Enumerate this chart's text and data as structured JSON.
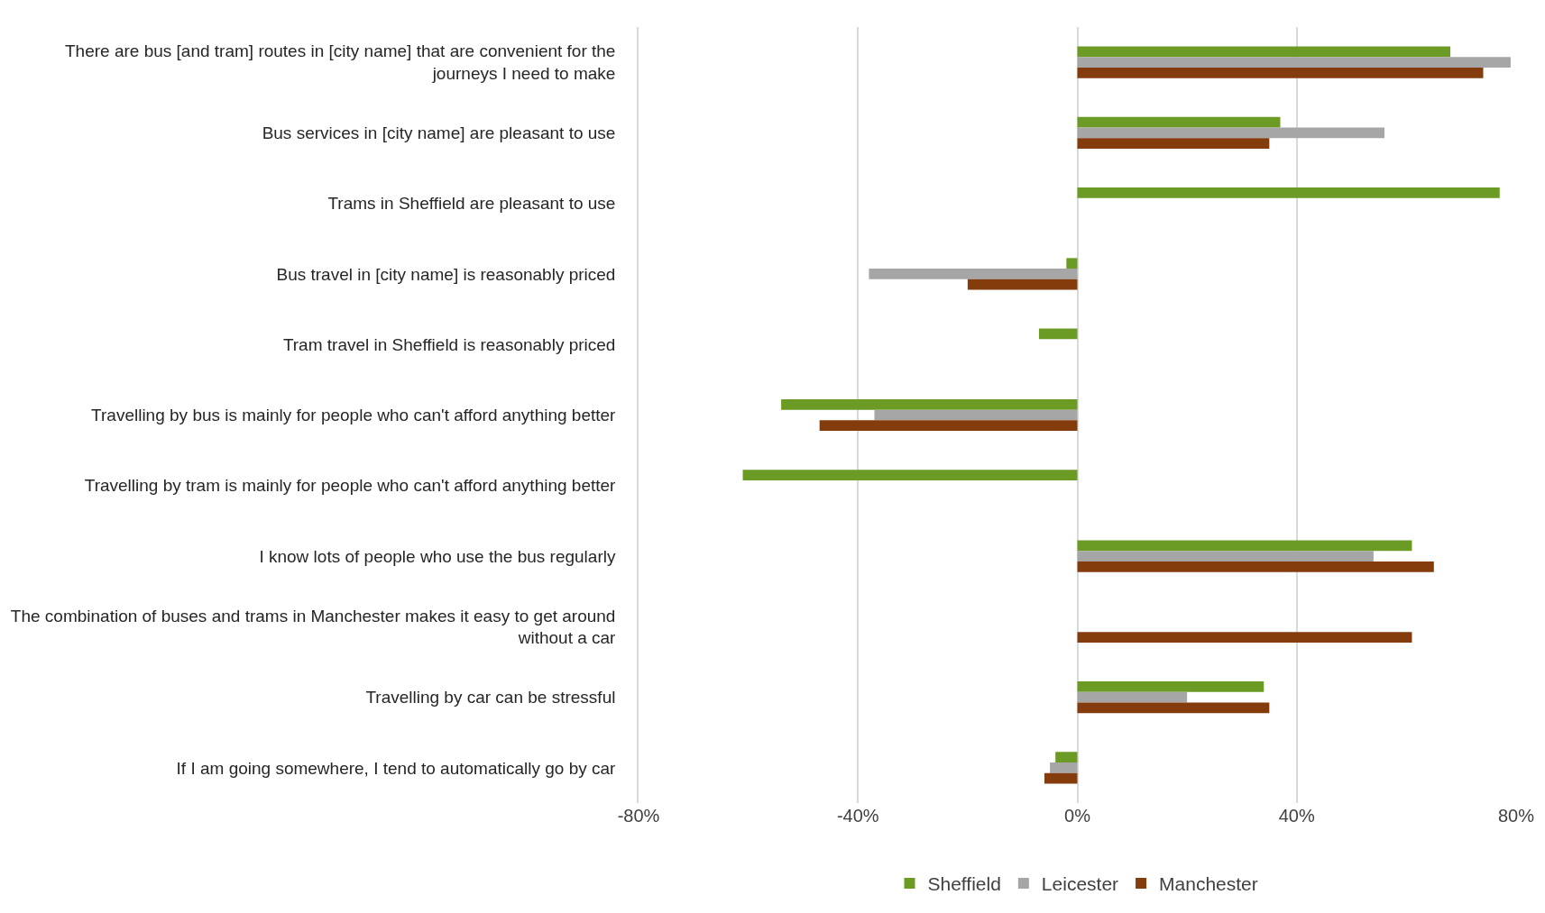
{
  "chart_data": {
    "type": "bar",
    "orientation": "horizontal",
    "categories": [
      "There are bus [and tram] routes in [city name] that are convenient for the journeys I need to make",
      "Bus services in [city name] are pleasant to use",
      "Trams in Sheffield are pleasant to use",
      "Bus travel in [city name] is reasonably priced",
      "Tram travel in Sheffield is reasonably priced",
      "Travelling by bus is mainly for people who can't afford anything better",
      "Travelling by tram is mainly for people who can't afford anything better",
      "I know lots of people who use the bus regularly",
      "The combination of buses and trams in Manchester makes it easy to get around without a car",
      "Travelling by car can be stressful",
      "If I am going somewhere, I tend to automatically go by car"
    ],
    "series": [
      {
        "name": "Sheffield",
        "color": "#6b9b24",
        "values": [
          68,
          37,
          77,
          -2,
          -7,
          -54,
          -61,
          61,
          null,
          34,
          -4
        ]
      },
      {
        "name": "Leicester",
        "color": "#a6a6a6",
        "values": [
          79,
          56,
          null,
          -38,
          null,
          -37,
          null,
          54,
          null,
          20,
          -5
        ]
      },
      {
        "name": "Manchester",
        "color": "#843c0c",
        "values": [
          74,
          35,
          null,
          -20,
          null,
          -47,
          null,
          65,
          61,
          35,
          -6
        ]
      }
    ],
    "xlim": [
      -80,
      80
    ],
    "xticks": [
      {
        "value": -80,
        "label": "-80%"
      },
      {
        "value": -40,
        "label": "-40%"
      },
      {
        "value": 0,
        "label": "0%"
      },
      {
        "value": 40,
        "label": "40%"
      },
      {
        "value": 80,
        "label": "80%"
      }
    ],
    "grid": "x",
    "legend": "bottom"
  }
}
